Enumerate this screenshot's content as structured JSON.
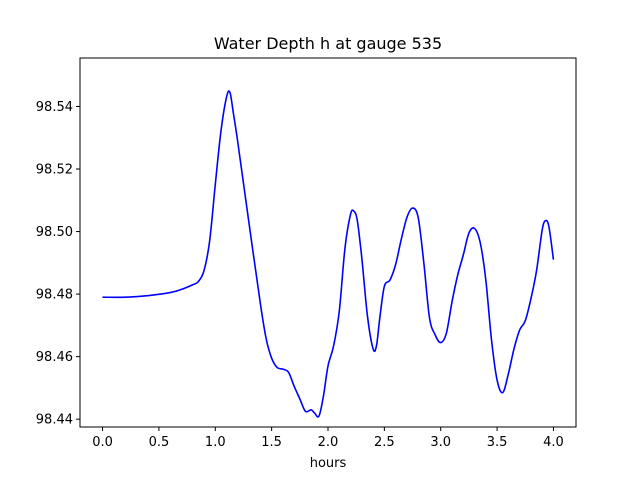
{
  "chart_data": {
    "type": "line",
    "title": "Water Depth h at gauge 535",
    "xlabel": "hours",
    "ylabel": "",
    "xlim": [
      -0.2,
      4.2
    ],
    "ylim": [
      98.4375,
      98.5555
    ],
    "grid": false,
    "x_ticks": [
      0.0,
      0.5,
      1.0,
      1.5,
      2.0,
      2.5,
      3.0,
      3.5,
      4.0
    ],
    "x_tick_labels": [
      "0.0",
      "0.5",
      "1.0",
      "1.5",
      "2.0",
      "2.5",
      "3.0",
      "3.5",
      "4.0"
    ],
    "y_ticks": [
      98.44,
      98.46,
      98.48,
      98.5,
      98.52,
      98.54
    ],
    "y_tick_labels": [
      "98.44",
      "98.46",
      "98.48",
      "98.50",
      "98.52",
      "98.54"
    ],
    "series": [
      {
        "color": "#0000ff",
        "x": [
          0.0,
          0.2,
          0.4,
          0.6,
          0.7,
          0.8,
          0.85,
          0.9,
          0.95,
          1.0,
          1.05,
          1.1,
          1.13,
          1.16,
          1.2,
          1.3,
          1.4,
          1.45,
          1.5,
          1.55,
          1.6,
          1.65,
          1.7,
          1.75,
          1.8,
          1.85,
          1.88,
          1.92,
          1.96,
          2.0,
          2.05,
          2.1,
          2.15,
          2.2,
          2.23,
          2.26,
          2.3,
          2.35,
          2.4,
          2.43,
          2.46,
          2.5,
          2.55,
          2.6,
          2.65,
          2.7,
          2.75,
          2.8,
          2.85,
          2.9,
          2.95,
          3.0,
          3.05,
          3.1,
          3.15,
          3.2,
          3.25,
          3.3,
          3.35,
          3.4,
          3.45,
          3.5,
          3.55,
          3.6,
          3.65,
          3.7,
          3.75,
          3.8,
          3.85,
          3.9,
          3.93,
          3.96,
          4.0
        ],
        "y": [
          98.479,
          98.479,
          98.4795,
          98.4805,
          98.4815,
          98.483,
          98.484,
          98.4875,
          98.497,
          98.515,
          98.532,
          98.543,
          98.5445,
          98.538,
          98.5285,
          98.5025,
          98.477,
          98.466,
          98.4595,
          98.4565,
          98.456,
          98.455,
          98.4505,
          98.4465,
          98.4425,
          98.443,
          98.442,
          98.441,
          98.4475,
          98.457,
          98.4635,
          98.4745,
          98.4945,
          98.5055,
          98.5065,
          98.5035,
          98.4915,
          98.473,
          98.4625,
          98.4635,
          98.4725,
          98.4825,
          98.4845,
          98.4895,
          98.4975,
          98.5045,
          98.5075,
          98.5045,
          98.49,
          98.4725,
          98.467,
          98.4645,
          98.4675,
          98.4775,
          98.486,
          98.4925,
          98.4995,
          98.501,
          98.4965,
          98.4845,
          98.4655,
          98.4525,
          98.4485,
          98.4545,
          98.4625,
          98.4685,
          98.4715,
          98.4785,
          98.4875,
          98.5005,
          98.5035,
          98.5015,
          98.491
        ]
      }
    ]
  }
}
